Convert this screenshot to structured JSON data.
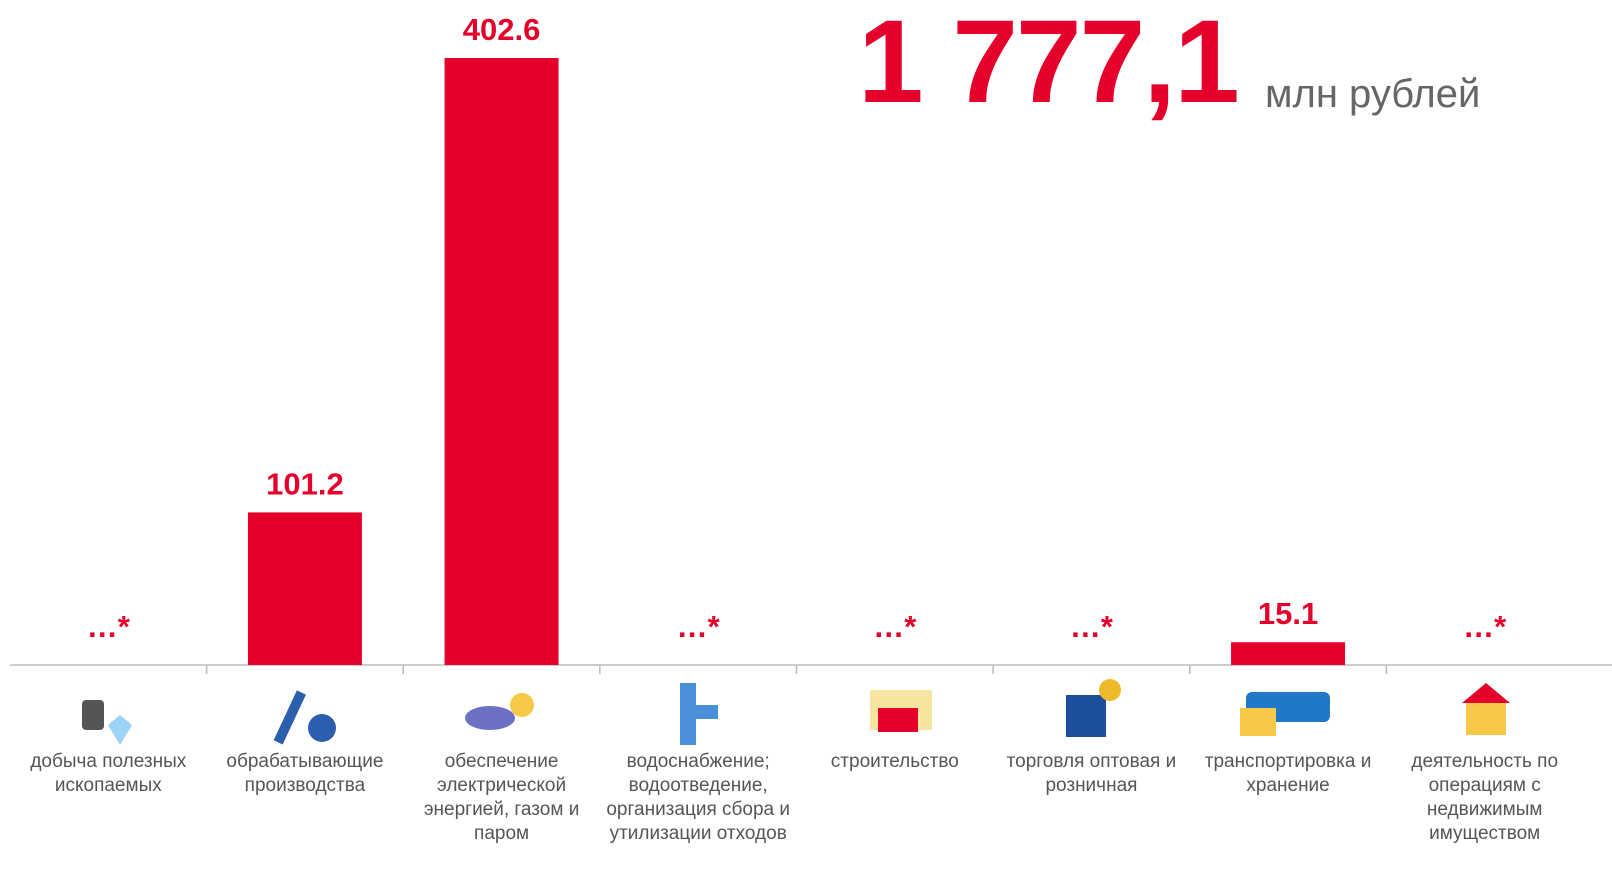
{
  "chart_data": {
    "type": "bar",
    "total": "1 777,1",
    "unit": "млн рублей",
    "categories": [
      "добыча полезных ископаемых",
      "обрабатывающие производства",
      "обеспечение электрической энергией, газом и паром",
      "водоснабжение; водоотведение, организация сбора и утилизации отходов",
      "строительство",
      "торговля оптовая и розничная",
      "транспортировка и хранение",
      "деятельность по операциям с недвижимым имуществом"
    ],
    "values": [
      null,
      101.2,
      402.6,
      null,
      null,
      null,
      15.1,
      null
    ],
    "value_labels": [
      "…*",
      "101.2",
      "402.6",
      "…*",
      "…*",
      "…*",
      "15.1",
      "…*"
    ],
    "color": "#e4002b",
    "ylim": [
      0,
      402.6
    ]
  }
}
